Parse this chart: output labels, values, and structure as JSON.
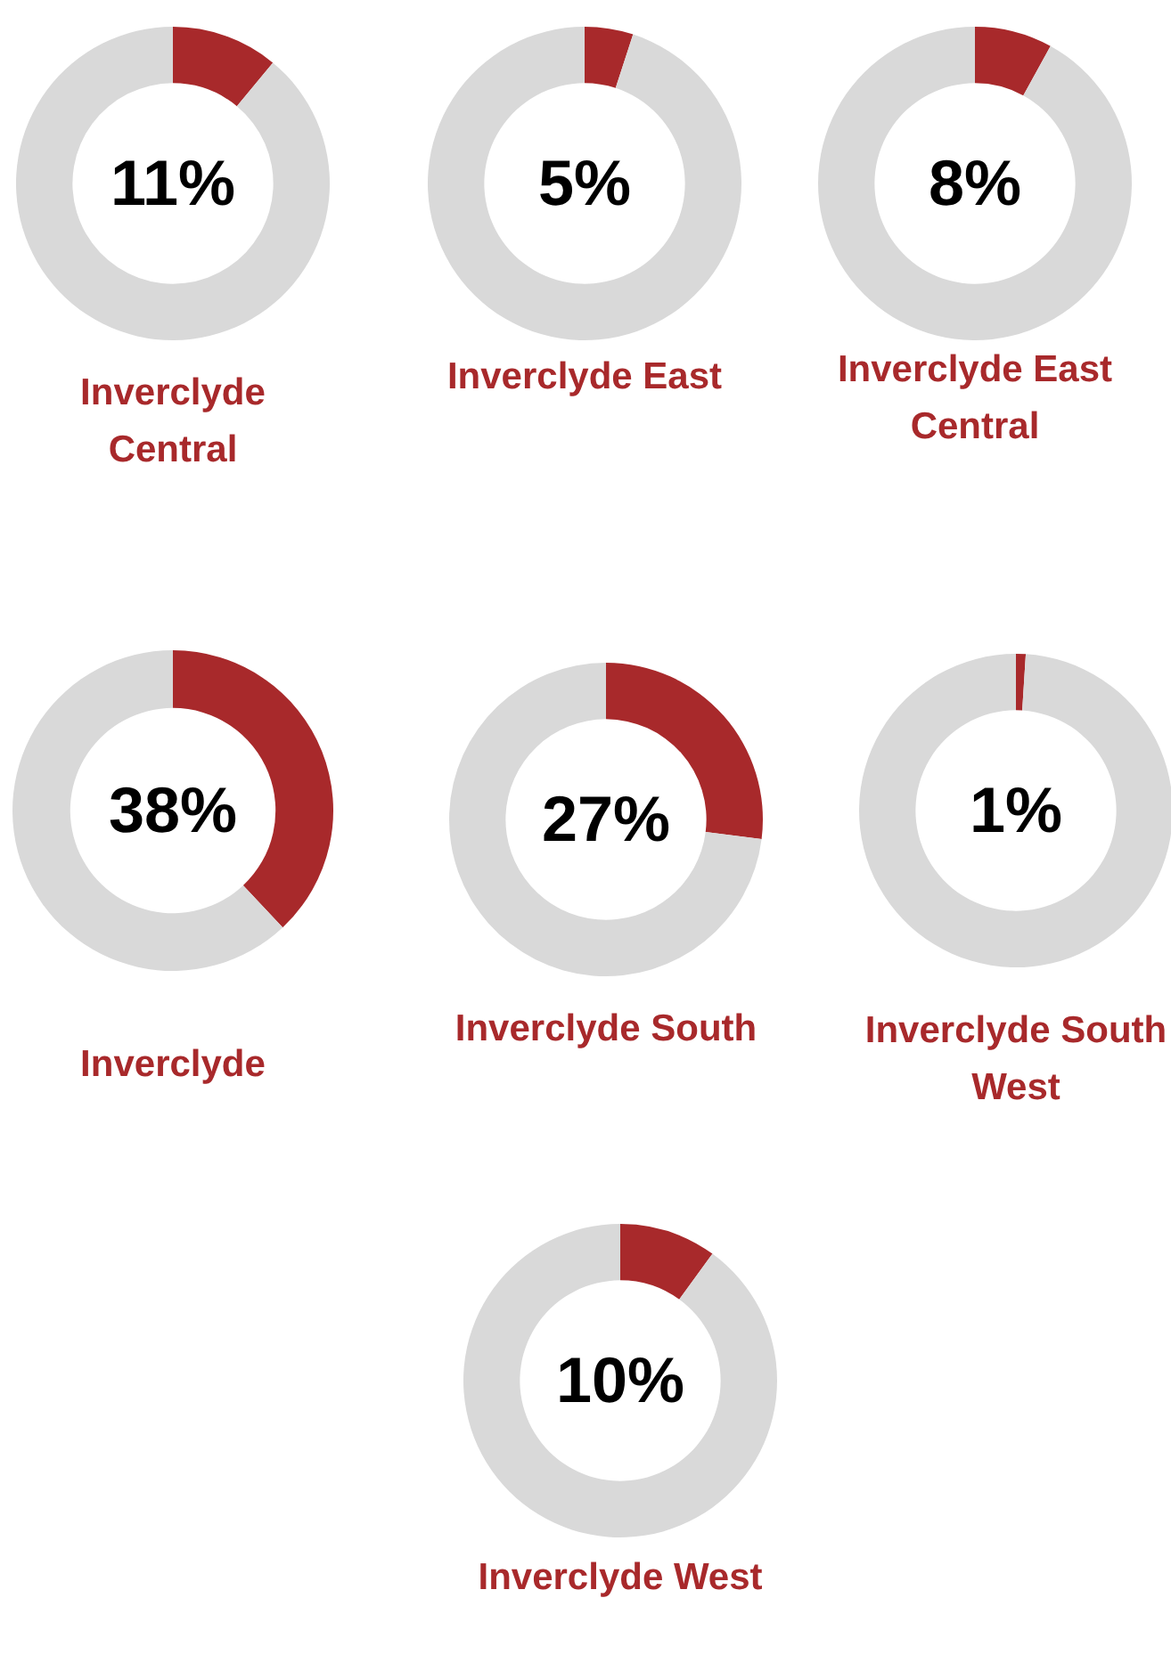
{
  "chart_data": [
    {
      "type": "donut",
      "title": "Inverclyde Central",
      "categories": [
        null,
        null
      ],
      "values": [
        11,
        89
      ],
      "colors": [
        "#a8292b",
        "#d9d9d9"
      ],
      "value_labels": [
        "11%",
        null
      ]
    },
    {
      "type": "donut",
      "title": "Inverclyde East",
      "categories": [
        null,
        null
      ],
      "values": [
        5,
        95
      ],
      "colors": [
        "#a8292b",
        "#d9d9d9"
      ],
      "value_labels": [
        "5%",
        null
      ]
    },
    {
      "type": "donut",
      "title": "Inverclyde East Central",
      "categories": [
        null,
        null
      ],
      "values": [
        8,
        92
      ],
      "colors": [
        "#a8292b",
        "#d9d9d9"
      ],
      "value_labels": [
        "8%",
        null
      ]
    },
    {
      "type": "donut",
      "title": "Inverclyde",
      "categories": [
        null,
        null
      ],
      "values": [
        38,
        62
      ],
      "colors": [
        "#a8292b",
        "#d9d9d9"
      ],
      "value_labels": [
        "38%",
        null
      ]
    },
    {
      "type": "donut",
      "title": "Inverclyde South",
      "categories": [
        null,
        null
      ],
      "values": [
        27,
        73
      ],
      "colors": [
        "#a8292b",
        "#d9d9d9"
      ],
      "value_labels": [
        "27%",
        null
      ]
    },
    {
      "type": "donut",
      "title": "Inverclyde South West",
      "categories": [
        null,
        null
      ],
      "values": [
        1,
        99
      ],
      "colors": [
        "#a8292b",
        "#d9d9d9"
      ],
      "value_labels": [
        "1%",
        null
      ]
    },
    {
      "type": "donut",
      "title": "Inverclyde West",
      "categories": [
        null,
        null
      ],
      "values": [
        10,
        90
      ],
      "colors": [
        "#a8292b",
        "#d9d9d9"
      ],
      "value_labels": [
        "10%",
        null
      ]
    }
  ]
}
